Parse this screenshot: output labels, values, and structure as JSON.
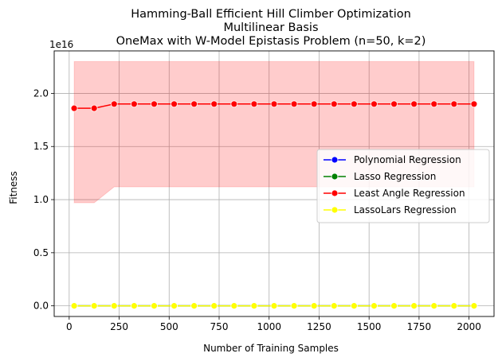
{
  "chart_data": {
    "type": "line",
    "title": [
      "Hamming-Ball Efficient Hill Climber Optimization",
      "Multilinear Basis",
      "OneMax with W-Model Epistasis Problem (n=50, k=2)"
    ],
    "xlabel": "Number of Training Samples",
    "ylabel": "Fitness",
    "offset_label": "1e16",
    "xlim": [
      -75,
      2125
    ],
    "ylim": [
      -0.1,
      2.4
    ],
    "y_scale_note": "values in units of 1e16",
    "x_ticks": [
      0,
      250,
      500,
      750,
      1000,
      1250,
      1500,
      1750,
      2000
    ],
    "x_tick_labels": [
      "0",
      "250",
      "500",
      "750",
      "1000",
      "1250",
      "1500",
      "1750",
      "2000"
    ],
    "y_ticks": [
      0.0,
      0.5,
      1.0,
      1.5,
      2.0
    ],
    "y_tick_labels": [
      "0.0",
      "0.5",
      "1.0",
      "1.5",
      "2.0"
    ],
    "grid": true,
    "legend_position": "center-right",
    "x": [
      25,
      125,
      225,
      325,
      425,
      525,
      625,
      725,
      825,
      925,
      1025,
      1125,
      1225,
      1325,
      1425,
      1525,
      1625,
      1725,
      1825,
      1925,
      2025
    ],
    "series": [
      {
        "name": "Polynomial Regression",
        "color": "#0000ff",
        "values": [
          0,
          0,
          0,
          0,
          0,
          0,
          0,
          0,
          0,
          0,
          0,
          0,
          0,
          0,
          0,
          0,
          0,
          0,
          0,
          0,
          0
        ]
      },
      {
        "name": "Lasso Regression",
        "color": "#008000",
        "values": [
          0,
          0,
          0,
          0,
          0,
          0,
          0,
          0,
          0,
          0,
          0,
          0,
          0,
          0,
          0,
          0,
          0,
          0,
          0,
          0,
          0
        ]
      },
      {
        "name": "Least Angle Regression",
        "color": "#ff0000",
        "values": [
          1.86,
          1.86,
          1.9,
          1.9,
          1.9,
          1.9,
          1.9,
          1.9,
          1.9,
          1.9,
          1.9,
          1.9,
          1.9,
          1.9,
          1.9,
          1.9,
          1.9,
          1.9,
          1.9,
          1.9,
          1.9
        ],
        "band_lower": [
          0.97,
          0.97,
          1.12,
          1.12,
          1.12,
          1.12,
          1.12,
          1.12,
          1.12,
          1.12,
          1.12,
          1.12,
          1.12,
          1.12,
          1.12,
          1.12,
          1.12,
          1.12,
          1.12,
          1.12,
          1.12
        ],
        "band_upper": [
          2.3,
          2.3,
          2.3,
          2.3,
          2.3,
          2.3,
          2.3,
          2.3,
          2.3,
          2.3,
          2.3,
          2.3,
          2.3,
          2.3,
          2.3,
          2.3,
          2.3,
          2.3,
          2.3,
          2.3,
          2.3
        ]
      },
      {
        "name": "LassoLars Regression",
        "color": "#ffff00",
        "values": [
          0,
          0,
          0,
          0,
          0,
          0,
          0,
          0,
          0,
          0,
          0,
          0,
          0,
          0,
          0,
          0,
          0,
          0,
          0,
          0,
          0
        ]
      }
    ]
  }
}
